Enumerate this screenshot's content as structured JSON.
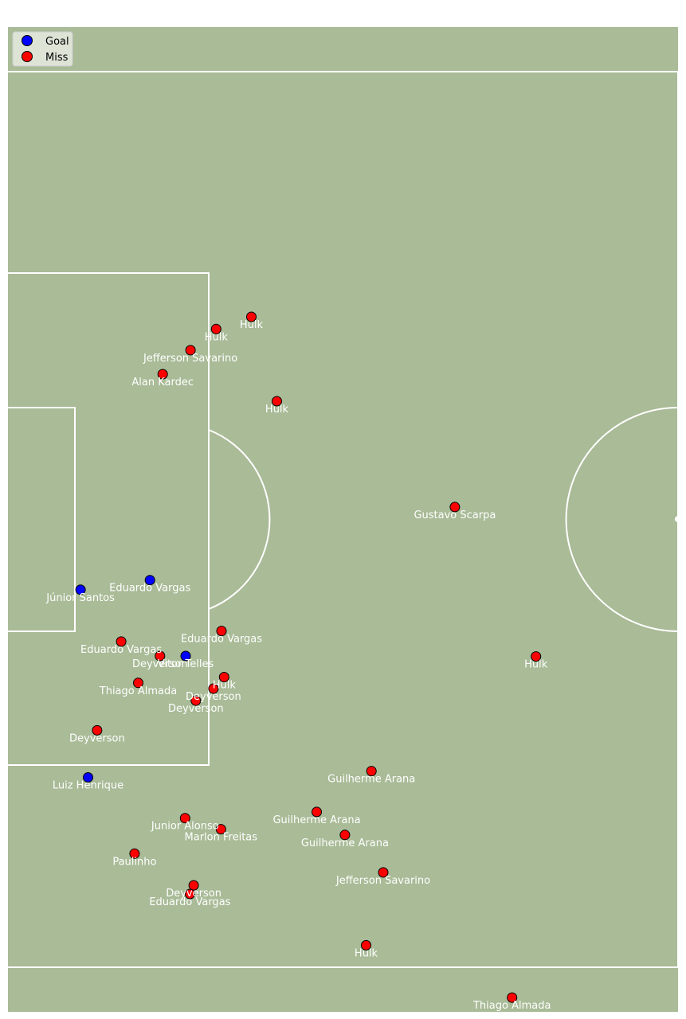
{
  "colors": {
    "pitch": "#a9bb97",
    "lines": "#ffffff",
    "goal": "#0000ff",
    "miss": "#ff0000",
    "label": "#ffffff"
  },
  "legend": [
    {
      "label": "Goal",
      "color": "#0000ff"
    },
    {
      "label": "Miss",
      "color": "#ff0000"
    }
  ],
  "chart_data": {
    "type": "scatter",
    "series": [
      {
        "name": "Goal",
        "color": "#0000ff"
      },
      {
        "name": "Miss",
        "color": "#ff0000"
      }
    ],
    "shots": [
      {
        "player": "Hulk",
        "x": 268.8,
        "y": 248.8,
        "result": "Miss"
      },
      {
        "player": "Hulk",
        "x": 229.9,
        "y": 233.9,
        "result": "Miss"
      },
      {
        "player": "Jefferson Savarino",
        "x": 201.6,
        "y": 207.9,
        "result": "Miss"
      },
      {
        "player": "Alan Kardec",
        "x": 170.9,
        "y": 178.4,
        "result": "Miss"
      },
      {
        "player": "Hulk",
        "x": 297.0,
        "y": 145.2,
        "result": "Miss"
      },
      {
        "player": "Gustavo Scarpa",
        "x": 493.5,
        "y": 15.3,
        "result": "Miss"
      },
      {
        "player": "Eduardo Vargas",
        "x": 156.8,
        "y": -74.5,
        "result": "Goal"
      },
      {
        "player": "Júnior Santos",
        "x": 80.2,
        "y": -86.3,
        "result": "Goal"
      },
      {
        "player": "Eduardo Vargas",
        "x": 235.8,
        "y": -137.0,
        "result": "Miss"
      },
      {
        "player": "Eduardo Vargas",
        "x": 125.0,
        "y": -150.0,
        "result": "Miss"
      },
      {
        "player": "Deyverson",
        "x": 167.9,
        "y": -167.7,
        "result": "Miss"
      },
      {
        "player": "Vitor Telles",
        "x": 196.2,
        "y": -167.7,
        "result": "Goal"
      },
      {
        "player": "Thiago Almada",
        "x": 143.9,
        "y": -200.7,
        "result": "Miss"
      },
      {
        "player": "Hulk",
        "x": 238.7,
        "y": -193.6,
        "result": "Miss"
      },
      {
        "player": "Deyverson",
        "x": 226.9,
        "y": -207.8,
        "result": "Miss"
      },
      {
        "player": "Deyverson",
        "x": 207.5,
        "y": -222.5,
        "result": "Miss"
      },
      {
        "player": "Hulk",
        "x": 583.1,
        "y": -168.3,
        "result": "Miss"
      },
      {
        "player": "Deyverson",
        "x": 98.5,
        "y": -259.0,
        "result": "Miss"
      },
      {
        "player": "Luiz Henrique",
        "x": 88.4,
        "y": -316.8,
        "result": "Goal"
      },
      {
        "player": "Guilherme Arana",
        "x": 401.4,
        "y": -309.1,
        "result": "Miss"
      },
      {
        "player": "Guilherme Arana",
        "x": 341.0,
        "y": -359.2,
        "result": "Miss"
      },
      {
        "player": "Guilherme Arana",
        "x": 372.1,
        "y": -387.5,
        "result": "Miss"
      },
      {
        "player": "Junior Alonso",
        "x": 195.6,
        "y": -366.9,
        "result": "Miss"
      },
      {
        "player": "Marlon Freitas",
        "x": 235.2,
        "y": -380.5,
        "result": "Miss"
      },
      {
        "player": "Paulinho",
        "x": 139.8,
        "y": -410.5,
        "result": "Miss"
      },
      {
        "player": "Jefferson Savarino",
        "x": 414.4,
        "y": -433.5,
        "result": "Miss"
      },
      {
        "player": "Deyverson",
        "x": 205.1,
        "y": -449.4,
        "result": "Miss"
      },
      {
        "player": "Eduardo Vargas",
        "x": 201.0,
        "y": -460.0,
        "result": "Miss"
      },
      {
        "player": "Hulk",
        "x": 395.5,
        "y": -523.0,
        "result": "Miss"
      },
      {
        "player": "Thiago Almada",
        "x": 556.7,
        "y": -587.3,
        "result": "Miss"
      }
    ]
  }
}
